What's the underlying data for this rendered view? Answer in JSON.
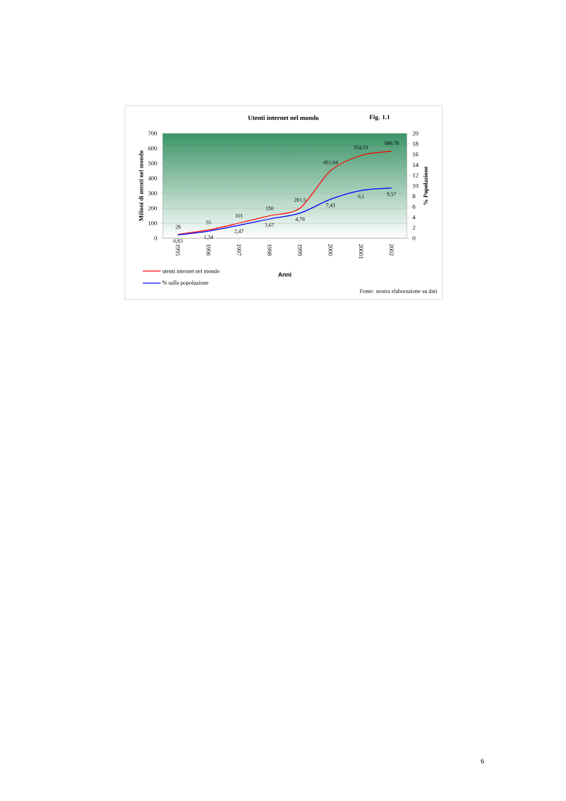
{
  "chart_data": {
    "type": "line",
    "title": "Utenti internet nel mondo",
    "categories": [
      "1995",
      "1996",
      "1997",
      "1998",
      "1999",
      "2000",
      "20001",
      "2002"
    ],
    "xlabel": "Anni",
    "ylabel": "Milioni di utenti nel mondo",
    "y2label": "% Popolazione",
    "ylim": [
      0,
      700
    ],
    "yticks": [
      0,
      100,
      200,
      300,
      400,
      500,
      600,
      700
    ],
    "y2lim": [
      0,
      20
    ],
    "y2ticks": [
      0,
      2,
      4,
      6,
      8,
      10,
      12,
      14,
      16,
      18,
      20
    ],
    "grid": "y",
    "legend": "bottom left",
    "series": [
      {
        "name": "utenti internet nel mondo",
        "color": "#ff0000",
        "values": [
          26,
          55,
          101,
          150,
          201.5,
          451.04,
          552.51,
          580.78
        ],
        "value_labels": [
          "26",
          "55",
          "101",
          "150",
          "201,5",
          "451,04",
          "552,51",
          "580,78"
        ]
      },
      {
        "name": "% sulla popolazione",
        "color": "#0000ff",
        "axis": "y2",
        "values": [
          0.63,
          1.34,
          2.47,
          3.67,
          4.78,
          7.43,
          9.1,
          9.57
        ],
        "value_labels": [
          "0,63",
          "1,34",
          "2,47",
          "3,67",
          "4,78",
          "7,43",
          "9,1",
          "9,57"
        ]
      }
    ],
    "annotations": [
      "Fig. 1.1",
      "Fonte: nostra elaborazione su dati",
      "6"
    ]
  }
}
